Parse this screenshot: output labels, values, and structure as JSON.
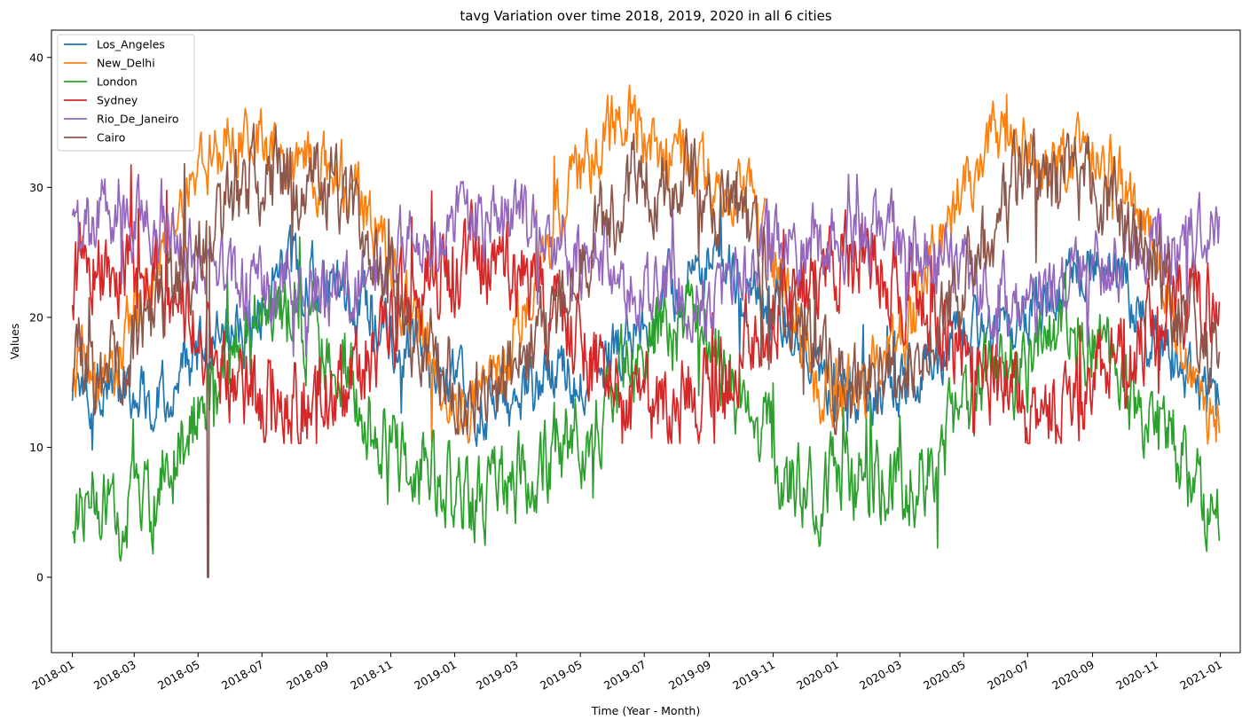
{
  "chart_data": {
    "type": "line",
    "title": "tavg Variation over time 2018, 2019, 2020 in all 6 cities",
    "xlabel": "Time (Year - Month)",
    "ylabel": "Values",
    "x_range": [
      "2017-12-12",
      "2021-01-20"
    ],
    "ylim": [
      -5.8,
      42.1
    ],
    "x_ticks": [
      "2018-01",
      "2018-03",
      "2018-05",
      "2018-07",
      "2018-09",
      "2018-11",
      "2019-01",
      "2019-03",
      "2019-05",
      "2019-07",
      "2019-09",
      "2019-11",
      "2020-01",
      "2020-03",
      "2020-05",
      "2020-07",
      "2020-09",
      "2020-11",
      "2021-01"
    ],
    "y_ticks": [
      0,
      10,
      20,
      30,
      40
    ],
    "grid": false,
    "legend_position": "upper left",
    "start_date": "2018-01-01",
    "days": 1096,
    "series": [
      {
        "name": "Los_Angeles",
        "color": "#1f77b4",
        "monthly_means": [
          14.5,
          15.2,
          14.0,
          16.0,
          17.5,
          19.5,
          23.5,
          23.5,
          22.0,
          19.5,
          18.0,
          15.5,
          13.5,
          13.0,
          14.5,
          16.0,
          16.5,
          18.5,
          21.5,
          23.0,
          24.5,
          21.5,
          20.0,
          16.0,
          14.5,
          14.5,
          16.0,
          17.5,
          20.0,
          19.5,
          22.0,
          24.0,
          25.0,
          19.5,
          17.0,
          13.5
        ],
        "noise": 1.6,
        "min": 9.8,
        "max": 29.0
      },
      {
        "name": "New_Delhi",
        "color": "#ff7f0e",
        "monthly_means": [
          13.0,
          17.5,
          23.5,
          29.5,
          33.0,
          34.5,
          33.0,
          31.5,
          30.5,
          27.5,
          21.0,
          15.0,
          13.0,
          16.5,
          22.5,
          29.5,
          33.5,
          36.0,
          32.0,
          31.5,
          30.5,
          28.0,
          21.5,
          14.0,
          14.0,
          17.5,
          20.5,
          28.0,
          33.0,
          34.0,
          31.5,
          32.0,
          31.5,
          27.5,
          21.0,
          13.0
        ],
        "noise": 1.7,
        "min": 7.5,
        "max": 40.0
      },
      {
        "name": "London",
        "color": "#2ca02c",
        "monthly_means": [
          6.5,
          4.0,
          5.5,
          11.0,
          15.0,
          18.0,
          21.0,
          19.0,
          15.5,
          11.5,
          8.0,
          7.5,
          6.0,
          6.5,
          8.5,
          10.5,
          12.0,
          16.5,
          19.5,
          19.0,
          16.0,
          11.5,
          7.5,
          7.0,
          7.5,
          7.5,
          7.5,
          10.5,
          14.5,
          16.0,
          18.0,
          19.5,
          16.5,
          12.0,
          10.5,
          6.0
        ],
        "noise": 2.2,
        "min": -3.4,
        "max": 28.0
      },
      {
        "name": "Sydney",
        "color": "#d62728",
        "monthly_means": [
          24.0,
          23.5,
          22.5,
          21.0,
          17.0,
          14.0,
          13.5,
          13.5,
          15.5,
          18.0,
          21.0,
          22.5,
          24.0,
          24.0,
          22.0,
          19.5,
          16.0,
          13.5,
          13.0,
          14.0,
          15.5,
          19.0,
          21.5,
          22.5,
          25.0,
          23.5,
          21.0,
          18.5,
          15.0,
          13.5,
          13.0,
          13.5,
          15.5,
          18.5,
          20.5,
          21.0
        ],
        "noise": 2.3,
        "min": 10.3,
        "max": 33.7
      },
      {
        "name": "Rio_De_Janeiro",
        "color": "#9467bd",
        "monthly_means": [
          27.0,
          27.5,
          27.5,
          25.5,
          23.5,
          22.0,
          22.5,
          22.0,
          22.5,
          23.5,
          25.5,
          26.5,
          27.5,
          27.5,
          26.0,
          25.0,
          24.5,
          22.5,
          21.5,
          22.0,
          21.5,
          24.5,
          26.0,
          26.0,
          26.5,
          26.5,
          25.5,
          24.5,
          22.0,
          21.5,
          21.0,
          22.5,
          24.5,
          25.0,
          25.5,
          26.0
        ],
        "noise": 1.9,
        "min": 17.0,
        "max": 31.0
      },
      {
        "name": "Cairo",
        "color": "#8c564b",
        "monthly_means": [
          15.5,
          17.0,
          20.5,
          24.0,
          27.5,
          30.5,
          30.5,
          30.5,
          29.5,
          26.0,
          20.5,
          16.0,
          14.0,
          14.5,
          18.0,
          21.5,
          26.5,
          30.5,
          31.0,
          30.5,
          29.0,
          26.0,
          21.5,
          16.0,
          14.0,
          15.5,
          17.0,
          20.5,
          25.0,
          30.0,
          30.5,
          30.5,
          29.0,
          25.5,
          21.5,
          16.0
        ],
        "noise": 2.2,
        "min": 11.0,
        "max": 36.5
      }
    ]
  }
}
